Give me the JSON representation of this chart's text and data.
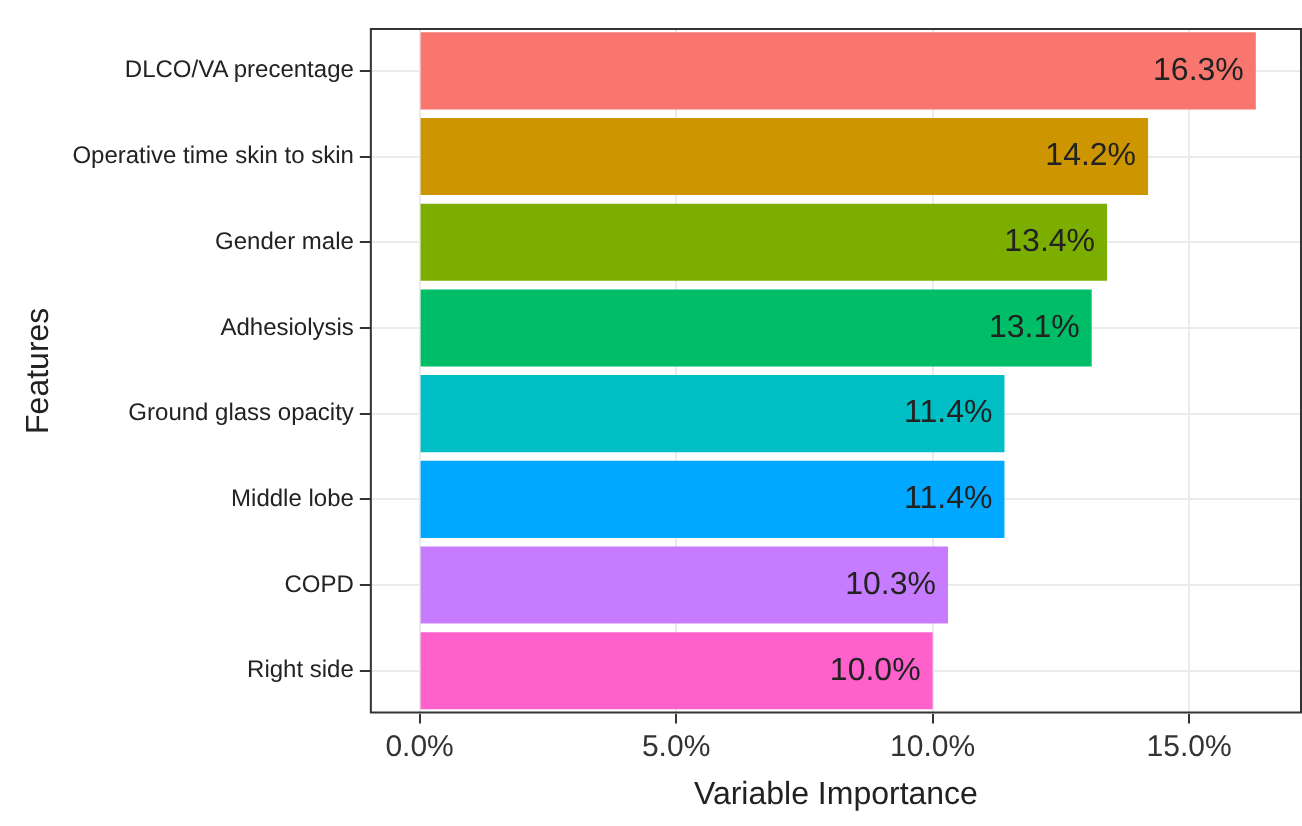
{
  "chart_data": {
    "type": "bar",
    "orientation": "horizontal",
    "xlabel": "Variable Importance",
    "ylabel": "Features",
    "categories": [
      "DLCO/VA precentage",
      "Operative time skin to skin",
      "Gender male",
      "Adhesiolysis",
      "Ground glass opacity",
      "Middle lobe",
      "COPD",
      "Right side"
    ],
    "values": [
      16.3,
      14.2,
      13.4,
      13.1,
      11.4,
      11.4,
      10.3,
      10.0
    ],
    "colors": [
      "#f8766d",
      "#cd9600",
      "#7cae00",
      "#00be67",
      "#00bfc4",
      "#00a9ff",
      "#c77cff",
      "#ff61cc"
    ],
    "value_labels": [
      "16.3%",
      "14.2%",
      "13.4%",
      "13.1%",
      "11.4%",
      "11.4%",
      "10.3%",
      "10.0%"
    ],
    "xlim": [
      -0.97,
      17.2
    ],
    "xticks": [
      {
        "value": 0,
        "label": "0.0%"
      },
      {
        "value": 5,
        "label": "5.0%"
      },
      {
        "value": 10,
        "label": "10.0%"
      },
      {
        "value": 15,
        "label": "15.0%"
      }
    ],
    "grid": true,
    "legend": false
  }
}
